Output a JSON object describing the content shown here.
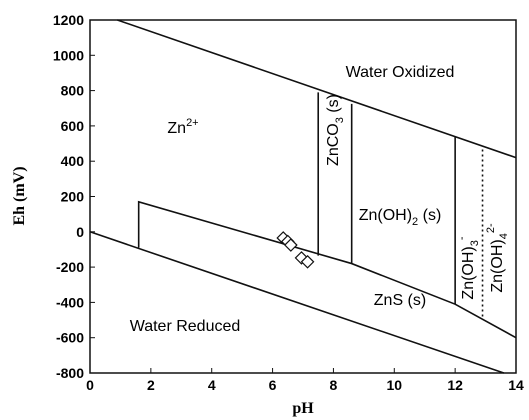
{
  "chart_data": {
    "type": "line",
    "x_label": "pH",
    "y_label": "Eh (mV)",
    "xlim": [
      0,
      14
    ],
    "ylim": [
      -800,
      1200
    ],
    "xticks": [
      0,
      2,
      4,
      6,
      8,
      10,
      12,
      14
    ],
    "yticks": [
      -800,
      -600,
      -400,
      -200,
      0,
      200,
      400,
      600,
      800,
      1000,
      1200
    ],
    "color": "#111111",
    "lines": [
      {
        "x": [
          0.9,
          14
        ],
        "values": [
          1200,
          420
        ]
      },
      {
        "x": [
          0,
          13.6
        ],
        "values": [
          0,
          -800
        ]
      },
      {
        "x": [
          1.6,
          1.6,
          8.6,
          12,
          14
        ],
        "values": [
          -90,
          170,
          -180,
          -410,
          -600
        ]
      },
      {
        "x": [
          7.5,
          7.5
        ],
        "values": [
          -135,
          790
        ]
      },
      {
        "x": [
          8.6,
          8.6
        ],
        "values": [
          -180,
          725
        ]
      },
      {
        "x": [
          12,
          12
        ],
        "values": [
          -410,
          540
        ]
      },
      {
        "x": [
          12.9,
          12.9
        ],
        "values": [
          -480,
          480
        ],
        "style": "dotted"
      }
    ],
    "points": {
      "x": [
        6.35,
        6.5,
        6.6,
        6.95,
        7.15
      ],
      "values": [
        -35,
        -55,
        -75,
        -148,
        -170
      ]
    },
    "labels": [
      {
        "text": "Water Oxidized"
      },
      {
        "text": "Zn",
        "sup": "2+"
      },
      {
        "text": "ZnCO",
        "sub": "3",
        "rest": " (s)"
      },
      {
        "text": "Zn(OH)",
        "sub": "2",
        "rest": " (s)"
      },
      {
        "text": "Zn(OH)",
        "sub": "3",
        "sup": "-"
      },
      {
        "text": "Zn(OH)",
        "sub": "4",
        "sup": "2-"
      },
      {
        "text": "ZnS (s)"
      },
      {
        "text": "Water Reduced"
      }
    ]
  }
}
